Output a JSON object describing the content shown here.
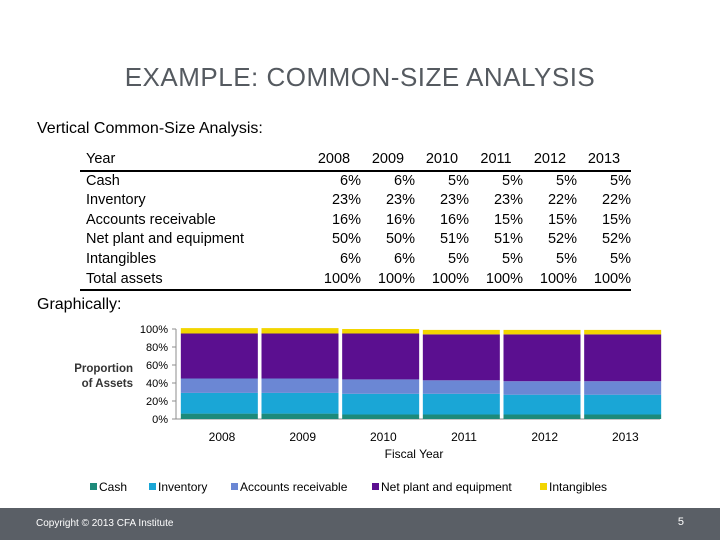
{
  "slide": {
    "title": "EXAMPLE: COMMON-SIZE ANALYSIS",
    "subtitle": "Vertical Common-Size Analysis:",
    "graph_label": "Graphically:",
    "copyright": "Copyright © 2013 CFA Institute",
    "page_number": "5"
  },
  "table": {
    "header_label": "Year",
    "years": [
      "2008",
      "2009",
      "2010",
      "2011",
      "2012",
      "2013"
    ],
    "rows": [
      {
        "label": "Cash",
        "values": [
          "6%",
          "6%",
          "5%",
          "5%",
          "5%",
          "5%"
        ]
      },
      {
        "label": "Inventory",
        "values": [
          "23%",
          "23%",
          "23%",
          "23%",
          "22%",
          "22%"
        ]
      },
      {
        "label": "Accounts receivable",
        "values": [
          "16%",
          "16%",
          "16%",
          "15%",
          "15%",
          "15%"
        ]
      },
      {
        "label": "Net plant and equipment",
        "values": [
          "50%",
          "50%",
          "51%",
          "51%",
          "52%",
          "52%"
        ]
      },
      {
        "label": "Intangibles",
        "values": [
          "6%",
          "6%",
          "5%",
          "5%",
          "5%",
          "5%"
        ]
      },
      {
        "label": "Total assets",
        "values": [
          "100%",
          "100%",
          "100%",
          "100%",
          "100%",
          "100%"
        ]
      }
    ]
  },
  "chart_data": {
    "type": "bar",
    "stacked": true,
    "categories": [
      "2008",
      "2009",
      "2010",
      "2011",
      "2012",
      "2013"
    ],
    "series": [
      {
        "name": "Cash",
        "values": [
          6,
          6,
          5,
          5,
          5,
          5
        ],
        "color": "#1d8a7a"
      },
      {
        "name": "Inventory",
        "values": [
          23,
          23,
          23,
          23,
          22,
          22
        ],
        "color": "#1aa6d6"
      },
      {
        "name": "Accounts receivable",
        "values": [
          16,
          16,
          16,
          15,
          15,
          15
        ],
        "color": "#6b87d4"
      },
      {
        "name": "Net plant and equipment",
        "values": [
          50,
          50,
          51,
          51,
          52,
          52
        ],
        "color": "#5b0f90"
      },
      {
        "name": "Intangibles",
        "values": [
          6,
          6,
          5,
          5,
          5,
          5
        ],
        "color": "#f2d500"
      }
    ],
    "ylabel": "Proportion of Assets",
    "ylabel_lines": [
      "Proportion",
      "of Assets"
    ],
    "xlabel": "Fiscal Year",
    "yticks": [
      0,
      20,
      40,
      60,
      80,
      100
    ],
    "ytick_labels": [
      "0%",
      "20%",
      "40%",
      "60%",
      "80%",
      "100%"
    ],
    "ylim": [
      0,
      100
    ],
    "legend_position": "bottom"
  }
}
